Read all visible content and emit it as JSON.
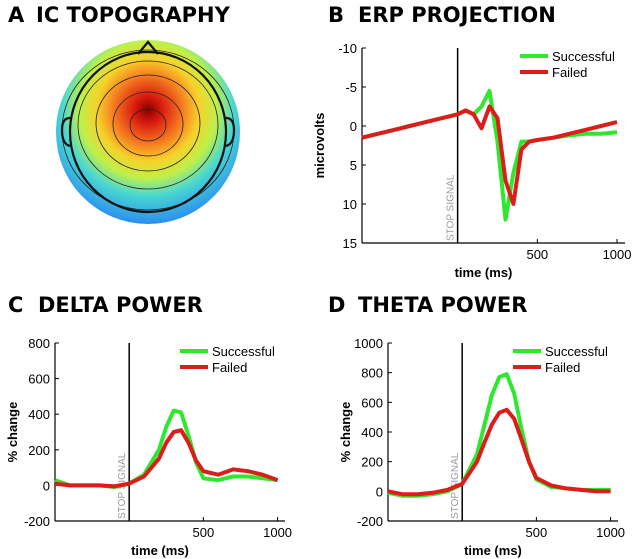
{
  "panels": [
    {
      "letter": "A",
      "title": "IC TOPOGRAPHY"
    }
  ],
  "chart_data": [
    {
      "type": "line",
      "letter": "B",
      "title": "ERP PROJECTION",
      "xlabel": "time (ms)",
      "ylabel": "microvolts",
      "annotation": "STOP SIGNAL",
      "annotation_x": 0,
      "xlim": [
        -600,
        1050
      ],
      "xticks": [
        500,
        1000
      ],
      "ylim": [
        -10,
        15
      ],
      "yticks": [
        -10,
        -5,
        0,
        5,
        10,
        15
      ],
      "y_inverted": true,
      "legend": "upper right",
      "x": [
        -600,
        -500,
        -400,
        -300,
        -200,
        -100,
        0,
        50,
        100,
        150,
        200,
        250,
        300,
        350,
        400,
        450,
        500,
        600,
        700,
        800,
        900,
        1000
      ],
      "series": [
        {
          "name": "Successful",
          "color": "#2ee82e",
          "values": [
            1.5,
            1,
            0.5,
            0,
            -0.5,
            -1,
            -1.5,
            -2,
            -1.5,
            -2.5,
            -4.5,
            2,
            12,
            6,
            2,
            2,
            1.8,
            1.5,
            1.2,
            1,
            1,
            0.8
          ]
        },
        {
          "name": "Failed",
          "color": "#dd1c1c",
          "values": [
            1.5,
            1,
            0.5,
            0,
            -0.5,
            -1,
            -1.5,
            -2,
            -1.5,
            0.3,
            -2.5,
            -1,
            7,
            10,
            3,
            2,
            1.8,
            1.5,
            1,
            0.5,
            0,
            -0.5
          ]
        }
      ]
    },
    {
      "type": "line",
      "letter": "C",
      "title": "DELTA POWER",
      "xlabel": "time (ms)",
      "ylabel": "% change",
      "annotation": "STOP SIGNAL",
      "annotation_x": 0,
      "xlim": [
        -500,
        1050
      ],
      "xticks": [
        500,
        1000
      ],
      "ylim": [
        -200,
        800
      ],
      "yticks": [
        -200,
        0,
        200,
        400,
        600,
        800
      ],
      "y_inverted": false,
      "legend": "upper right",
      "x": [
        -500,
        -400,
        -300,
        -200,
        -100,
        0,
        100,
        200,
        250,
        300,
        350,
        400,
        450,
        500,
        600,
        700,
        800,
        900,
        1000
      ],
      "series": [
        {
          "name": "Successful",
          "color": "#2ee82e",
          "values": [
            30,
            0,
            0,
            0,
            -10,
            10,
            60,
            200,
            330,
            420,
            410,
            280,
            130,
            40,
            30,
            50,
            50,
            40,
            30
          ]
        },
        {
          "name": "Failed",
          "color": "#dd1c1c",
          "values": [
            10,
            0,
            0,
            0,
            -5,
            10,
            50,
            150,
            240,
            300,
            310,
            240,
            140,
            80,
            60,
            90,
            80,
            60,
            30
          ]
        }
      ]
    },
    {
      "type": "line",
      "letter": "D",
      "title": "THETA POWER",
      "xlabel": "time (ms)",
      "ylabel": "% change",
      "annotation": "STOP SIGNAL",
      "annotation_x": 0,
      "xlim": [
        -500,
        1050
      ],
      "xticks": [
        500,
        1000
      ],
      "ylim": [
        -200,
        1000
      ],
      "yticks": [
        -200,
        0,
        200,
        400,
        600,
        800,
        1000
      ],
      "y_inverted": false,
      "legend": "upper right",
      "x": [
        -500,
        -400,
        -300,
        -200,
        -100,
        0,
        100,
        150,
        200,
        250,
        300,
        350,
        400,
        450,
        500,
        600,
        700,
        800,
        900,
        1000
      ],
      "series": [
        {
          "name": "Successful",
          "color": "#2ee82e",
          "values": [
            -10,
            -30,
            -30,
            -20,
            0,
            50,
            250,
            450,
            650,
            770,
            790,
            660,
            420,
            200,
            80,
            30,
            20,
            10,
            10,
            10
          ]
        },
        {
          "name": "Failed",
          "color": "#dd1c1c",
          "values": [
            0,
            -20,
            -20,
            -10,
            10,
            50,
            200,
            330,
            450,
            530,
            550,
            490,
            350,
            200,
            90,
            40,
            20,
            10,
            0,
            0
          ]
        }
      ]
    }
  ]
}
